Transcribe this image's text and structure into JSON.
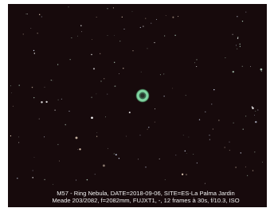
{
  "caption": {
    "line1": "M57 - Ring Nebula, DATE=2018-09-06, SITE=ES-La Palma Jardin",
    "line2": "Meade 203/2082, f=2082mm, FUJXT1, -, 12 frames à 30s, f/10.3, ISO"
  }
}
